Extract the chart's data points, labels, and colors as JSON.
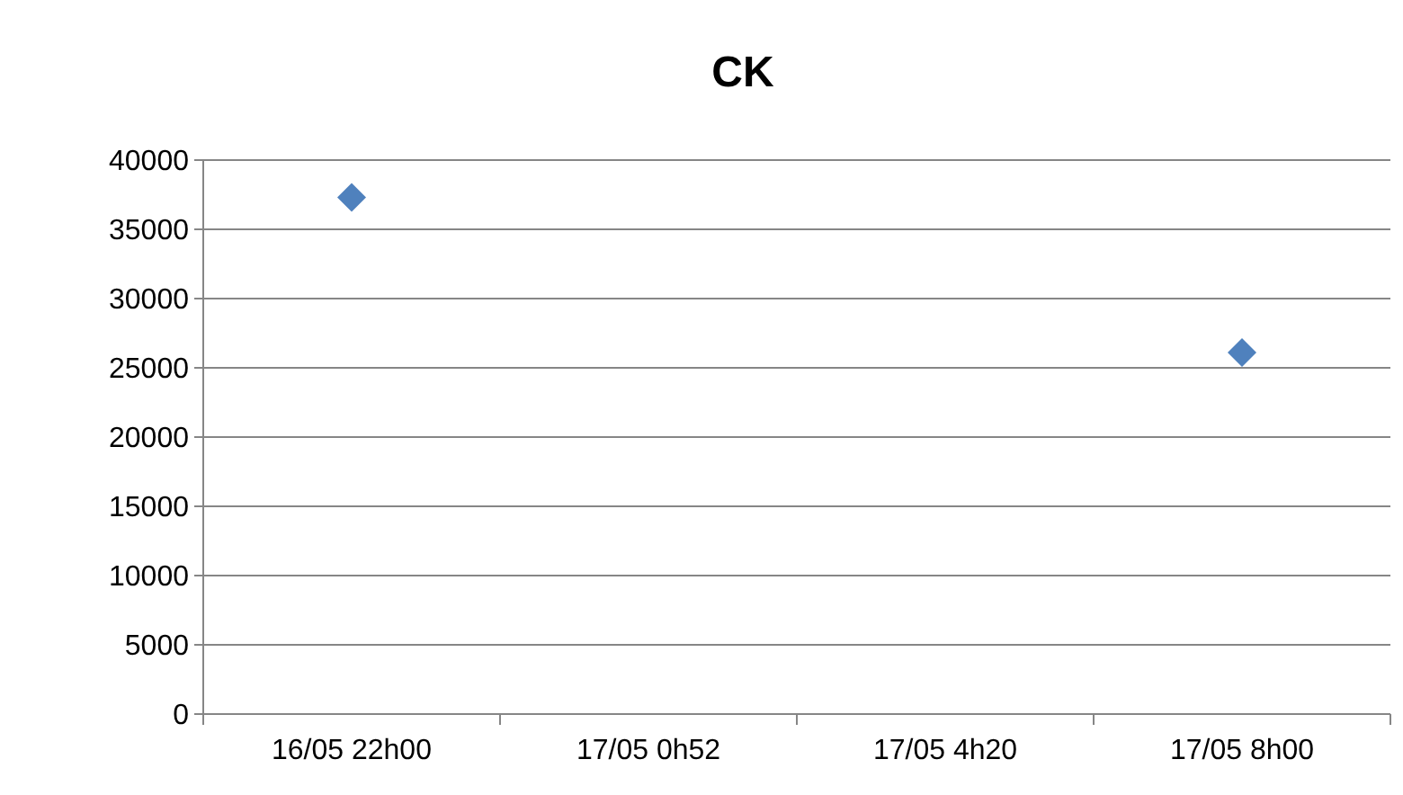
{
  "chart_data": {
    "type": "scatter",
    "title": "CK",
    "categories": [
      "16/05 22h00",
      "17/05 0h52",
      "17/05 4h20",
      "17/05 8h00"
    ],
    "series": [
      {
        "color": "#4f81bd",
        "values": [
          37300,
          null,
          null,
          26100
        ]
      }
    ],
    "ylim": [
      0,
      40000
    ],
    "yticks": [
      0,
      5000,
      10000,
      15000,
      20000,
      25000,
      30000,
      35000,
      40000
    ],
    "grid": "y",
    "marker": "diamond"
  }
}
